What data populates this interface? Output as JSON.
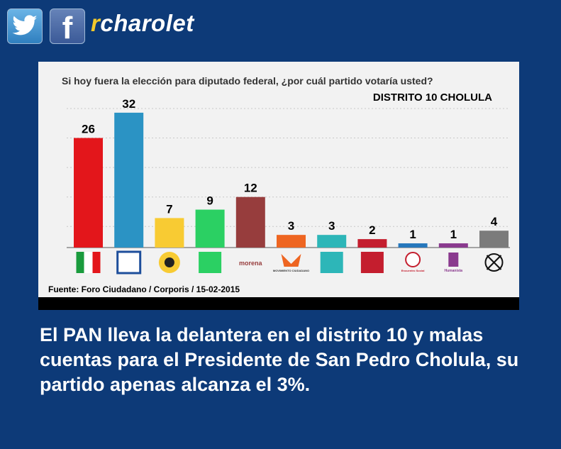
{
  "header": {
    "brand_prefix": "r",
    "brand_rest": "charolet",
    "twitter_icon": "twitter-bird-icon",
    "facebook_icon": "facebook-f-icon",
    "facebook_glyph": "f"
  },
  "chart_data": {
    "type": "bar",
    "title": "Si hoy fuera la elección para diputado federal, ¿por cuál partido votaría usted?",
    "subtitle": "DISTRITO 10 CHOLULA",
    "source": "Fuente: Foro Ciudadano / Corporis / 15-02-2015",
    "categories": [
      "PRI",
      "PAN",
      "PRD",
      "VERDE",
      "morena",
      "MOVIMIENTO CIUDADANO",
      "alianza",
      "PT",
      "Encuentro Social",
      "Humanista",
      "Nulo"
    ],
    "values": [
      26,
      32,
      7,
      9,
      12,
      3,
      3,
      2,
      1,
      1,
      4
    ],
    "bar_colors": [
      "#e3161b",
      "#2b93c4",
      "#f8cb33",
      "#2bd063",
      "#973d3d",
      "#ee6521",
      "#2db6b8",
      "#c41e2e",
      "#2677bc",
      "#8a3a8e",
      "#7b7b7b"
    ],
    "ylim": [
      0,
      34
    ],
    "grid": true,
    "legend": "none"
  },
  "caption": "El PAN lleva la delantera en el distrito 10 y malas cuentas para el Presidente de San Pedro Cholula, su partido apenas alcanza el 3%."
}
